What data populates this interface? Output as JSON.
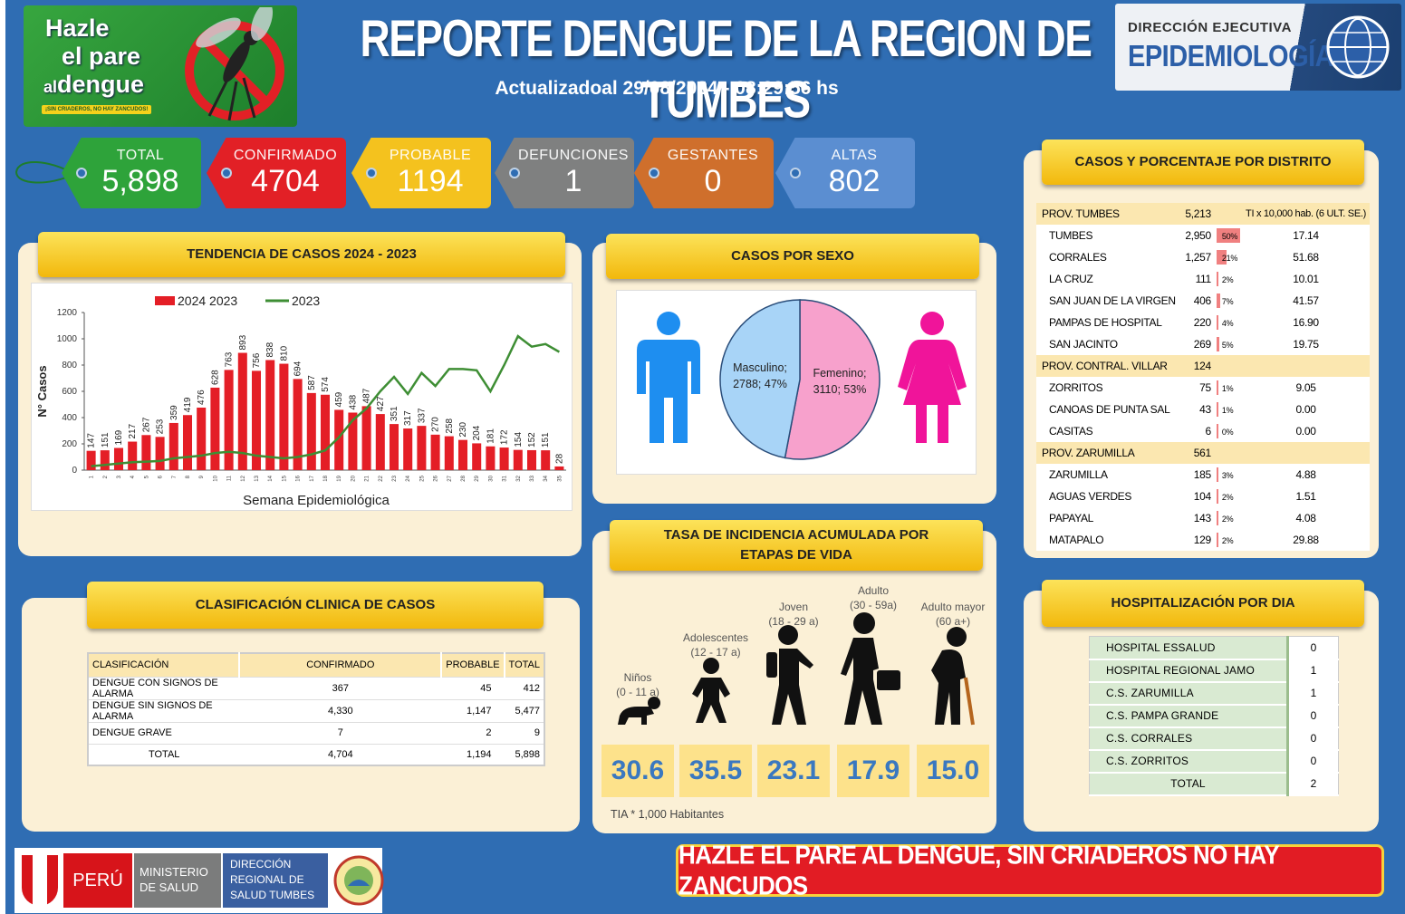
{
  "header": {
    "title": "REPORTE DENGUE DE LA REGION DE TUMBES",
    "updated": "Actualizadoal 29/08/2024 - 08:29:56 hs"
  },
  "logo": {
    "line1": "Hazle",
    "line2": "el pare",
    "line3_small": "al",
    "line3": "dengue",
    "tagline": "¡SIN CRIADEROS, NO HAY ZANCUDOS!"
  },
  "agency": {
    "line1": "DIRECCIÓN EJECUTIVA",
    "line2": "EPIDEMIOLOGÍA"
  },
  "tags": [
    {
      "label": "TOTAL",
      "value": "5,898",
      "color": "#2ea33a"
    },
    {
      "label": "CONFIRMADO",
      "value": "4704",
      "color": "#e22026"
    },
    {
      "label": "PROBABLE",
      "value": "1194",
      "color": "#f4c21e"
    },
    {
      "label": "DEFUNCIONES",
      "value": "1",
      "color": "#7f8080"
    },
    {
      "label": "GESTANTES",
      "value": "0",
      "color": "#cf6f2c"
    },
    {
      "label": "ALTAS",
      "value": "802",
      "color": "#5b8ed1"
    }
  ],
  "trend": {
    "title": "TENDENCIA DE CASOS 2024 - 2023"
  },
  "chart_data": {
    "type": "bar",
    "legend": [
      "2024 2023",
      "2023"
    ],
    "xlabel": "Semana Epidemiológica",
    "ylabel": "N° Casos",
    "ylim": [
      0,
      1200
    ],
    "yticks": [
      0,
      200,
      400,
      600,
      800,
      1000,
      1200
    ],
    "categories": [
      "1",
      "2",
      "3",
      "4",
      "5",
      "6",
      "7",
      "8",
      "9",
      "10",
      "11",
      "12",
      "13",
      "14",
      "15",
      "16",
      "17",
      "18",
      "19",
      "20",
      "21",
      "22",
      "23",
      "24",
      "25",
      "26",
      "27",
      "28",
      "29",
      "30",
      "31",
      "32",
      "33",
      "34",
      "35"
    ],
    "series": [
      {
        "name": "2024 2023",
        "type": "bar",
        "color": "#e41e26",
        "values": [
          147,
          151,
          169,
          217,
          267,
          253,
          359,
          419,
          476,
          628,
          763,
          893,
          756,
          838,
          810,
          694,
          587,
          574,
          459,
          438,
          487,
          427,
          351,
          317,
          337,
          270,
          258,
          230,
          204,
          181,
          172,
          154,
          152,
          151,
          28
        ]
      },
      {
        "name": "2023",
        "type": "line",
        "color": "#3e8e34",
        "values": [
          30,
          40,
          50,
          60,
          65,
          70,
          90,
          100,
          110,
          130,
          140,
          130,
          110,
          100,
          90,
          100,
          120,
          150,
          250,
          380,
          470,
          600,
          710,
          580,
          740,
          640,
          770,
          770,
          760,
          600,
          800,
          1020,
          940,
          960,
          900
        ]
      }
    ]
  },
  "sex": {
    "title": "CASOS POR SEXO",
    "male_label": "Masculino;",
    "male_value": "2788; 47%",
    "female_label": "Femenino;",
    "female_value": "3110; 53%",
    "male_pct": 47,
    "female_pct": 53
  },
  "incidence": {
    "title_line1": "TASA DE INCIDENCIA ACUMULADA POR",
    "title_line2": "ETAPAS DE VIDA",
    "note": "TIA * 1,000 Habitantes",
    "groups": [
      {
        "name": "Niños",
        "range": "(0 - 11 a)",
        "value": "30.6"
      },
      {
        "name": "Adolescentes",
        "range": "(12 - 17 a)",
        "value": "35.5"
      },
      {
        "name": "Joven",
        "range": "(18 - 29 a)",
        "value": "23.1"
      },
      {
        "name": "Adulto",
        "range": "(30 - 59a)",
        "value": "17.9"
      },
      {
        "name": "Adulto mayor",
        "range": "(60 a+)",
        "value": "15.0"
      }
    ]
  },
  "clinical": {
    "title": "CLASIFICACIÓN CLINICA DE CASOS",
    "headers": [
      "CLASIFICACIÓN",
      "CONFIRMADO",
      "PROBABLE",
      "TOTAL"
    ],
    "rows": [
      [
        "DENGUE CON SIGNOS DE ALARMA",
        "367",
        "45",
        "412"
      ],
      [
        "DENGUE SIN SIGNOS DE ALARMA",
        "4,330",
        "1,147",
        "5,477"
      ],
      [
        "DENGUE GRAVE",
        "7",
        "2",
        "9"
      ],
      [
        "TOTAL",
        "4,704",
        "1,194",
        "5,898"
      ]
    ]
  },
  "district": {
    "title": "CASOS Y PORCENTAJE POR DISTRITO",
    "rows": [
      {
        "name": "PROV. TUMBES",
        "cases": "5,213",
        "pct": "",
        "rate": "TI x 10,000 hab. (6 ULT. SE.)",
        "prov": true,
        "bar": 0
      },
      {
        "name": "TUMBES",
        "cases": "2,950",
        "pct": "50%",
        "rate": "17.14",
        "bar": 50
      },
      {
        "name": "CORRALES",
        "cases": "1,257",
        "pct": "21%",
        "rate": "51.68",
        "bar": 21
      },
      {
        "name": "LA CRUZ",
        "cases": "111",
        "pct": "2%",
        "rate": "10.01",
        "bar": 2
      },
      {
        "name": "SAN JUAN DE LA VIRGEN",
        "cases": "406",
        "pct": "7%",
        "rate": "41.57",
        "bar": 7
      },
      {
        "name": "PAMPAS DE HOSPITAL",
        "cases": "220",
        "pct": "4%",
        "rate": "16.90",
        "bar": 4
      },
      {
        "name": "SAN JACINTO",
        "cases": "269",
        "pct": "5%",
        "rate": "19.75",
        "bar": 5
      },
      {
        "name": "PROV. CONTRAL. VILLAR",
        "cases": "124",
        "pct": "",
        "rate": "",
        "prov": true,
        "bar": 0
      },
      {
        "name": "ZORRITOS",
        "cases": "75",
        "pct": "1%",
        "rate": "9.05",
        "bar": 1
      },
      {
        "name": "CANOAS DE PUNTA SAL",
        "cases": "43",
        "pct": "1%",
        "rate": "0.00",
        "bar": 1
      },
      {
        "name": "CASITAS",
        "cases": "6",
        "pct": "0%",
        "rate": "0.00",
        "bar": 0
      },
      {
        "name": "PROV. ZARUMILLA",
        "cases": "561",
        "pct": "",
        "rate": "",
        "prov": true,
        "bar": 0
      },
      {
        "name": "ZARUMILLA",
        "cases": "185",
        "pct": "3%",
        "rate": "4.88",
        "bar": 3
      },
      {
        "name": "AGUAS VERDES",
        "cases": "104",
        "pct": "2%",
        "rate": "1.51",
        "bar": 2
      },
      {
        "name": "PAPAYAL",
        "cases": "143",
        "pct": "2%",
        "rate": "4.08",
        "bar": 2
      },
      {
        "name": "MATAPALO",
        "cases": "129",
        "pct": "2%",
        "rate": "29.88",
        "bar": 2
      }
    ]
  },
  "hospital": {
    "title": "HOSPITALIZACIÓN POR DIA",
    "rows": [
      [
        "HOSPITAL ESSALUD",
        "0"
      ],
      [
        "HOSPITAL REGIONAL JAMO",
        "1"
      ],
      [
        "C.S. ZARUMILLA",
        "1"
      ],
      [
        "C.S. PAMPA GRANDE",
        "0"
      ],
      [
        "C.S. CORRALES",
        "0"
      ],
      [
        "C.S. ZORRITOS",
        "0"
      ]
    ],
    "total_label": "TOTAL",
    "total_value": "2"
  },
  "footer": {
    "peru": "PERÚ",
    "minsa_line1": "MINISTERIO",
    "minsa_line2": "DE SALUD",
    "diresa_line1": "DIRECCIÓN",
    "diresa_line2": "REGIONAL DE",
    "diresa_line3": "SALUD TUMBES",
    "slogan": "HAZLE EL PARE AL DENGUE, SIN CRIADEROS NO HAY ZANCUDOS"
  }
}
